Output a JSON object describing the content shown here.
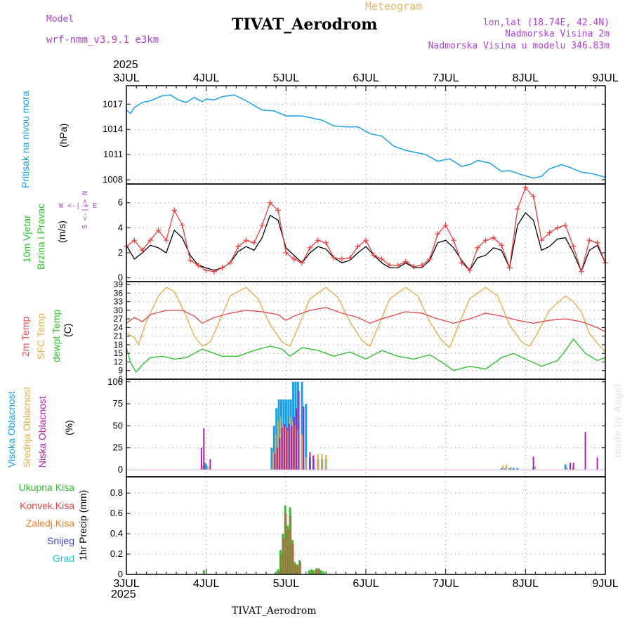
{
  "header": {
    "model_label": "Model",
    "model_name": "wrf-nmm_v3.9.1 e3km",
    "meteogram_label": "Meteogram",
    "title": "TIVAT_Aerodrom",
    "lonlat": "lon,lat (18.74E, 42.4N)",
    "elevation": "Nadmorska Visina 2m",
    "model_elevation": "Nadmorska Visina u modelu 346.83m",
    "year_top": "2025",
    "year_bottom": "2025",
    "footer_station": "TIVAT_Aerodrom",
    "credit": "made by Angel"
  },
  "colors": {
    "pressure": "#1ca0e8",
    "wind_speed": "#000000",
    "wind_gust": "#e84040",
    "temp2m": "#e05050",
    "sfc_temp": "#e0b050",
    "dewpoint": "#30c030",
    "cloud_high": "#18a0e8",
    "cloud_mid": "#e0b050",
    "cloud_low": "#b020b0",
    "rain_total": "#30c030",
    "rain_conv": "#e84040",
    "rain_frozen": "#f08030",
    "snow": "#4040e0",
    "graupel": "#20c8c8"
  },
  "chart_data": [
    {
      "type": "line",
      "id": "pressure",
      "labels": [
        "Pritisak na nivou mora",
        "(hPa)"
      ],
      "x_ticks": [
        "3JUL",
        "4JUL",
        "5JUL",
        "6JUL",
        "7JUL",
        "8JUL",
        "9JUL"
      ],
      "y_ticks": [
        "1008",
        "1011",
        "1014",
        "1017"
      ],
      "ylim": [
        1007.5,
        1019.2
      ],
      "series": [
        {
          "name": "Pritisak na nivou mora",
          "x": [
            0,
            0.05,
            0.1,
            0.2,
            0.3,
            0.45,
            0.55,
            0.65,
            0.75,
            0.85,
            0.95,
            1.0,
            1.1,
            1.2,
            1.35,
            1.5,
            1.7,
            1.85,
            2.0,
            2.2,
            2.45,
            2.6,
            2.75,
            2.9,
            3.05,
            3.2,
            3.35,
            3.5,
            3.6,
            3.75,
            3.9,
            4.05,
            4.2,
            4.3,
            4.4,
            4.55,
            4.7,
            4.8,
            4.95,
            5.1,
            5.2,
            5.3,
            5.45,
            5.55,
            5.7,
            5.85,
            6.0
          ],
          "values": [
            1016.3,
            1015.9,
            1016.6,
            1017.2,
            1017.4,
            1018.0,
            1018.1,
            1017.5,
            1017.2,
            1017.8,
            1017.3,
            1017.6,
            1017.5,
            1017.9,
            1018.1,
            1017.4,
            1016.3,
            1016.2,
            1015.6,
            1015.6,
            1015.1,
            1014.4,
            1014.3,
            1014.3,
            1013.5,
            1013.2,
            1012.0,
            1011.5,
            1011.3,
            1011.0,
            1010.2,
            1010.5,
            1009.6,
            1009.8,
            1010.3,
            1010.0,
            1009.0,
            1009.1,
            1008.6,
            1008.2,
            1008.4,
            1009.3,
            1009.8,
            1009.5,
            1008.9,
            1008.7,
            1008.3
          ]
        }
      ]
    },
    {
      "type": "line",
      "id": "wind",
      "labels": [
        "10m Vjetar",
        "Brzina i Pravac",
        "(m/s)"
      ],
      "compass": "W <-|-> E",
      "compass_ns": "S <-|-> N",
      "y_ticks": [
        "0",
        "2",
        "4",
        "6"
      ],
      "ylim": [
        -0.3,
        7.5
      ],
      "series": [
        {
          "name": "Brzina",
          "x": [
            0,
            0.1,
            0.2,
            0.3,
            0.4,
            0.5,
            0.6,
            0.7,
            0.8,
            0.9,
            1.0,
            1.1,
            1.2,
            1.3,
            1.4,
            1.5,
            1.6,
            1.7,
            1.8,
            1.9,
            2.0,
            2.1,
            2.2,
            2.3,
            2.4,
            2.5,
            2.6,
            2.7,
            2.8,
            2.9,
            3.0,
            3.1,
            3.2,
            3.3,
            3.4,
            3.5,
            3.6,
            3.7,
            3.8,
            3.9,
            4.0,
            4.1,
            4.2,
            4.3,
            4.4,
            4.5,
            4.6,
            4.7,
            4.8,
            4.9,
            5.0,
            5.1,
            5.2,
            5.3,
            5.4,
            5.5,
            5.6,
            5.7,
            5.8,
            5.9,
            6.0
          ],
          "values": [
            2.6,
            1.5,
            2.0,
            2.6,
            2.4,
            2.0,
            3.8,
            3.2,
            1.8,
            1.0,
            0.8,
            0.6,
            0.8,
            1.2,
            2.1,
            2.5,
            2.2,
            3.2,
            5.0,
            4.6,
            2.4,
            1.8,
            1.2,
            2.0,
            2.5,
            2.3,
            1.6,
            1.2,
            1.4,
            2.0,
            2.5,
            1.8,
            1.2,
            0.8,
            0.8,
            1.2,
            0.8,
            0.8,
            1.4,
            2.8,
            3.0,
            2.4,
            1.4,
            0.6,
            1.6,
            1.8,
            2.4,
            2.2,
            0.8,
            4.2,
            5.2,
            4.6,
            2.2,
            2.5,
            3.1,
            3.2,
            2.0,
            0.5,
            2.2,
            2.6,
            1.2
          ]
        },
        {
          "name": "Udari",
          "x": [
            0,
            0.1,
            0.2,
            0.3,
            0.4,
            0.5,
            0.6,
            0.7,
            0.8,
            0.9,
            1.0,
            1.1,
            1.2,
            1.3,
            1.4,
            1.5,
            1.6,
            1.7,
            1.8,
            1.9,
            2.0,
            2.1,
            2.2,
            2.3,
            2.4,
            2.5,
            2.6,
            2.7,
            2.8,
            2.9,
            3.0,
            3.1,
            3.2,
            3.3,
            3.4,
            3.5,
            3.6,
            3.7,
            3.8,
            3.9,
            4.0,
            4.1,
            4.2,
            4.3,
            4.4,
            4.5,
            4.6,
            4.7,
            4.8,
            4.9,
            5.0,
            5.1,
            5.2,
            5.3,
            5.4,
            5.5,
            5.6,
            5.7,
            5.8,
            5.9,
            6.0
          ],
          "values": [
            2.5,
            3.0,
            2.2,
            3.0,
            3.8,
            3.0,
            5.4,
            4.2,
            1.4,
            1.0,
            0.6,
            0.5,
            0.8,
            1.2,
            2.5,
            3.0,
            2.8,
            4.2,
            6.0,
            5.4,
            2.0,
            1.5,
            1.2,
            2.4,
            3.0,
            2.8,
            1.6,
            1.5,
            1.6,
            2.5,
            3.0,
            1.8,
            1.5,
            1.0,
            1.0,
            1.3,
            0.9,
            1.0,
            1.5,
            3.5,
            4.2,
            3.0,
            1.2,
            0.6,
            2.4,
            3.0,
            3.2,
            2.6,
            0.8,
            5.5,
            7.2,
            6.5,
            3.0,
            3.6,
            4.0,
            4.2,
            2.5,
            0.5,
            3.0,
            2.8,
            1.2
          ]
        }
      ]
    },
    {
      "type": "line",
      "id": "temperature",
      "labels": [
        "2m Temp",
        "SFC Temp",
        "dewpt Temp",
        "(C)"
      ],
      "y_ticks": [
        "6",
        "9",
        "12",
        "15",
        "18",
        "21",
        "24",
        "27",
        "30",
        "33",
        "36",
        "39"
      ],
      "ylim": [
        6,
        40
      ],
      "series": [
        {
          "name": "2m Temp",
          "x": [
            0,
            0.1,
            0.2,
            0.3,
            0.5,
            0.7,
            0.85,
            0.95,
            1.1,
            1.3,
            1.5,
            1.7,
            1.9,
            2.0,
            2.1,
            2.3,
            2.5,
            2.7,
            2.9,
            3.05,
            3.2,
            3.5,
            3.7,
            3.9,
            4.1,
            4.3,
            4.5,
            4.7,
            4.9,
            5.1,
            5.3,
            5.5,
            5.7,
            5.9,
            6.0
          ],
          "values": [
            25.5,
            27.5,
            26.0,
            28.5,
            30.0,
            30.0,
            28.0,
            25.5,
            27.5,
            29.0,
            30.0,
            29.5,
            28.5,
            26.5,
            28.0,
            30.0,
            31.0,
            29.0,
            27.5,
            25.5,
            27.0,
            29.5,
            29.0,
            27.0,
            25.5,
            27.0,
            29.0,
            28.0,
            26.5,
            25.5,
            26.5,
            27.0,
            26.0,
            24.0,
            22.5
          ]
        },
        {
          "name": "SFC Temp",
          "x": [
            0,
            0.1,
            0.15,
            0.25,
            0.4,
            0.5,
            0.6,
            0.75,
            0.85,
            0.95,
            1.05,
            1.15,
            1.3,
            1.5,
            1.65,
            1.8,
            1.95,
            2.05,
            2.15,
            2.3,
            2.5,
            2.65,
            2.8,
            2.95,
            3.05,
            3.15,
            3.3,
            3.5,
            3.65,
            3.8,
            3.95,
            4.05,
            4.15,
            4.3,
            4.5,
            4.65,
            4.8,
            4.95,
            5.05,
            5.15,
            5.3,
            5.5,
            5.6,
            5.7,
            5.8,
            5.9,
            6.0
          ],
          "values": [
            22.0,
            20.5,
            18.0,
            26.0,
            35.0,
            38.0,
            36.5,
            28.0,
            21.0,
            17.5,
            19.0,
            25.0,
            35.0,
            38.0,
            34.0,
            25.0,
            19.0,
            17.5,
            24.0,
            34.0,
            38.0,
            34.5,
            26.0,
            19.5,
            17.5,
            24.0,
            34.0,
            38.0,
            35.0,
            26.0,
            19.5,
            17.0,
            24.0,
            34.0,
            38.0,
            35.0,
            25.0,
            19.0,
            17.5,
            22.0,
            30.0,
            35.0,
            33.0,
            29.5,
            22.0,
            18.5,
            15.5
          ]
        },
        {
          "name": "dewpt Temp",
          "x": [
            0,
            0.05,
            0.12,
            0.2,
            0.3,
            0.45,
            0.6,
            0.75,
            0.85,
            0.95,
            1.05,
            1.2,
            1.4,
            1.6,
            1.8,
            1.95,
            2.05,
            2.2,
            2.4,
            2.6,
            2.8,
            3.0,
            3.2,
            3.4,
            3.6,
            3.8,
            3.95,
            4.1,
            4.3,
            4.5,
            4.7,
            4.85,
            5.0,
            5.2,
            5.4,
            5.5,
            5.6,
            5.75,
            5.9,
            6.0
          ],
          "values": [
            17.0,
            12.0,
            8.5,
            11.0,
            13.5,
            14.0,
            13.0,
            13.5,
            15.0,
            16.5,
            15.5,
            14.0,
            14.0,
            16.0,
            17.5,
            16.5,
            14.0,
            17.0,
            16.0,
            14.0,
            15.5,
            13.0,
            16.0,
            14.0,
            13.0,
            14.5,
            12.0,
            9.0,
            10.5,
            9.5,
            13.5,
            15.0,
            13.0,
            10.5,
            12.5,
            16.0,
            20.0,
            15.0,
            12.5,
            13.5
          ]
        }
      ]
    },
    {
      "type": "bar",
      "id": "clouds",
      "labels": [
        "Visoka Oblacnost",
        "Srednja Oblacnost",
        "Niska Oblacnost",
        "(%)"
      ],
      "y_ticks": [
        "0",
        "25",
        "50",
        "75",
        "100"
      ],
      "ylim": [
        0,
        100
      ],
      "series": [
        {
          "name": "Visoka Oblacnost",
          "x": [
            0.98,
            1.0,
            1.82,
            1.85,
            1.88,
            1.91,
            1.94,
            1.97,
            2.0,
            2.03,
            2.06,
            2.09,
            2.12,
            2.15,
            2.2,
            2.25,
            2.3,
            2.35,
            2.4,
            2.45,
            2.5,
            4.7,
            4.75,
            4.8,
            4.85,
            4.9,
            5.1,
            5.5,
            5.6
          ],
          "values": [
            8,
            6,
            25,
            50,
            70,
            80,
            80,
            80,
            80,
            80,
            80,
            100,
            100,
            100,
            100,
            75,
            14,
            12,
            12,
            12,
            12,
            2,
            2,
            2,
            2,
            2,
            3,
            6,
            2
          ]
        },
        {
          "name": "Srednja Oblacnost",
          "x": [
            0.96,
            1.02,
            1.84,
            1.87,
            1.9,
            1.93,
            1.96,
            1.99,
            2.02,
            2.05,
            2.08,
            2.11,
            2.14,
            2.2,
            2.25,
            2.35,
            2.4,
            2.45,
            2.5,
            4.72,
            4.76,
            4.82,
            5.12,
            5.52
          ],
          "values": [
            5,
            4,
            20,
            40,
            55,
            60,
            50,
            48,
            45,
            60,
            55,
            50,
            45,
            40,
            14,
            17,
            18,
            18,
            17,
            5,
            6,
            3,
            4,
            3
          ]
        },
        {
          "name": "Niska Oblacnost",
          "x": [
            0.94,
            0.97,
            1.05,
            1.86,
            1.89,
            1.92,
            1.95,
            1.98,
            2.01,
            2.04,
            2.07,
            2.1,
            2.13,
            2.16,
            2.22,
            2.3,
            2.34,
            5.1,
            5.56,
            5.6,
            5.75,
            5.9
          ],
          "values": [
            25,
            47,
            12,
            18,
            25,
            36,
            48,
            52,
            48,
            52,
            50,
            60,
            70,
            90,
            72,
            20,
            16,
            15,
            8,
            8,
            43,
            14
          ]
        }
      ]
    },
    {
      "type": "bar",
      "id": "precip",
      "labels": [
        "Ukupna Kisa",
        "Konvek.Kisa",
        "Zaledj.Kisa",
        "Snijeg",
        "Grad",
        "1hr Precip (mm)"
      ],
      "x_ticks": [
        "3JUL",
        "4JUL",
        "5JUL",
        "6JUL",
        "7JUL",
        "8JUL",
        "9JUL"
      ],
      "y_ticks": [
        "0",
        "0.2",
        "0.4",
        "0.6",
        "0.8"
      ],
      "ylim": [
        0,
        0.96
      ],
      "series": [
        {
          "name": "Ukupna Kisa",
          "x": [
            0.97,
            1.87,
            1.9,
            1.93,
            1.96,
            1.99,
            2.02,
            2.05,
            2.08,
            2.11,
            2.14,
            2.17,
            2.29,
            2.32,
            2.35,
            2.38,
            2.41,
            2.44,
            2.47
          ],
          "values": [
            0.04,
            0.02,
            0.05,
            0.24,
            0.4,
            0.68,
            0.48,
            0.66,
            0.34,
            0.12,
            0.1,
            0.14,
            0.04,
            0.05,
            0.04,
            0.06,
            0.06,
            0.04,
            0.03
          ]
        },
        {
          "name": "Konvek.Kisa",
          "x": [
            1.9,
            1.93,
            1.96,
            1.99,
            2.02,
            2.05,
            2.08,
            2.11,
            2.14,
            2.17,
            2.32,
            2.38,
            2.41
          ],
          "values": [
            0.03,
            0.2,
            0.35,
            0.6,
            0.44,
            0.58,
            0.3,
            0.1,
            0.08,
            0.12,
            0.04,
            0.05,
            0.05
          ]
        }
      ]
    }
  ]
}
